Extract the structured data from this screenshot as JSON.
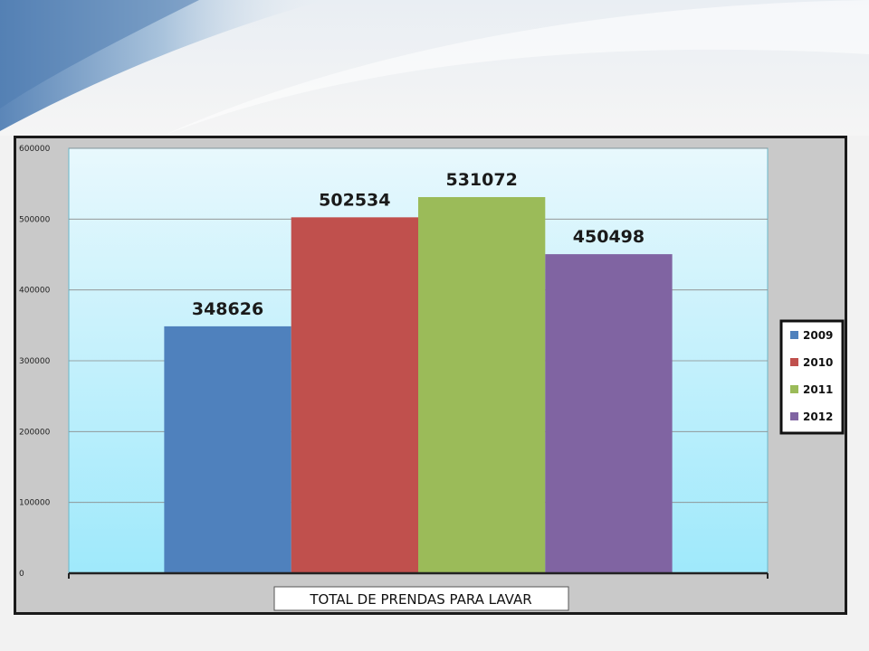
{
  "chart_data": {
    "type": "bar",
    "categories": [
      "TOTAL DE PRENDAS PARA LAVAR"
    ],
    "series": [
      {
        "name": "2009",
        "values": [
          348626
        ],
        "color": "#4f81bd"
      },
      {
        "name": "2010",
        "values": [
          502534
        ],
        "color": "#c0504d"
      },
      {
        "name": "2011",
        "values": [
          531072
        ],
        "color": "#9bbb59"
      },
      {
        "name": "2012",
        "values": [
          450498
        ],
        "color": "#8064a2"
      }
    ],
    "data_labels": [
      "348626",
      "502534",
      "531072",
      "450498"
    ],
    "yticks": [
      "0",
      "100000",
      "200000",
      "300000",
      "400000",
      "500000",
      "600000"
    ],
    "ylim": [
      0,
      600000
    ],
    "grid": true,
    "legend": "right",
    "title": "",
    "xlabel": "TOTAL DE PRENDAS PARA LAVAR",
    "ylabel": ""
  }
}
